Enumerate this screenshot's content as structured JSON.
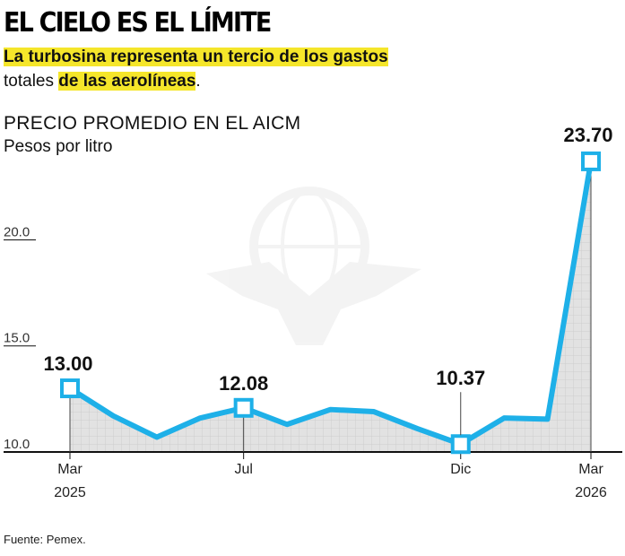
{
  "header": {
    "title": "EL CIELO ES EL LÍMITE",
    "subtitle_hl1": "La turbosina representa un tercio de los gastos",
    "subtitle_plain": "totales ",
    "subtitle_hl2": "de las aerolíneas",
    "subtitle_end": "."
  },
  "footer": {
    "source": "Fuente: Pemex."
  },
  "colors": {
    "line": "#1eb0e8",
    "fill": "#e2e2e2",
    "highlight": "#f5e62a",
    "axis": "#111111"
  },
  "chart_data": {
    "type": "area",
    "title": "PRECIO PROMEDIO EN EL AICM",
    "ylabel": "Pesos por litro",
    "ylim": [
      10,
      24.5
    ],
    "yticks": [
      10.0,
      15.0,
      20.0
    ],
    "ytick_labels": [
      "10.0",
      "15.0",
      "20.0"
    ],
    "x_tick_labels": [
      {
        "index": 0,
        "line1": "Mar",
        "line2": "2025"
      },
      {
        "index": 4,
        "line1": "Jul",
        "line2": ""
      },
      {
        "index": 9,
        "line1": "Dic",
        "line2": ""
      },
      {
        "index": 12,
        "line1": "Mar",
        "line2": "2026"
      }
    ],
    "series": [
      {
        "values": [
          13.0,
          11.7,
          10.7,
          11.6,
          12.08,
          11.3,
          12.0,
          11.9,
          11.1,
          10.37,
          11.6,
          11.55,
          23.7
        ]
      }
    ],
    "annotations": [
      {
        "index": 0,
        "label": "13.00"
      },
      {
        "index": 4,
        "label": "12.08"
      },
      {
        "index": 9,
        "label": "10.37"
      },
      {
        "index": 12,
        "label": "23.70"
      }
    ],
    "grid": false
  }
}
